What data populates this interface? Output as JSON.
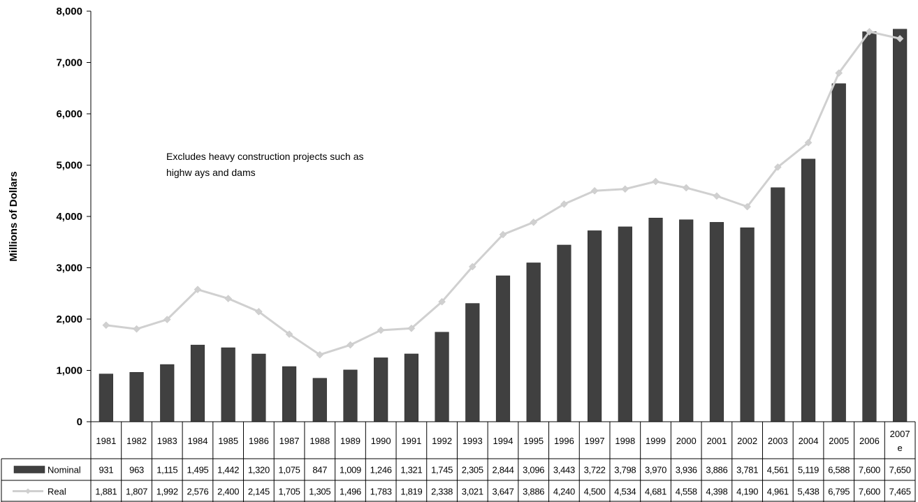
{
  "chart_data": {
    "type": "bar",
    "ylabel": "Millions of Dollars",
    "ylim": [
      0,
      8000
    ],
    "yticks": [
      "0",
      "1,000",
      "2,000",
      "3,000",
      "4,000",
      "5,000",
      "6,000",
      "7,000",
      "8,000"
    ],
    "categories": [
      "1981",
      "1982",
      "1983",
      "1984",
      "1985",
      "1986",
      "1987",
      "1988",
      "1989",
      "1990",
      "1991",
      "1992",
      "1993",
      "1994",
      "1995",
      "1996",
      "1997",
      "1998",
      "1999",
      "2000",
      "2001",
      "2002",
      "2003",
      "2004",
      "2005",
      "2006",
      "2007 e"
    ],
    "annotation": "Excludes heavy construction projects such as highw ays and dams",
    "grid": false,
    "legend": "data table below chart",
    "series": [
      {
        "name": "Nominal",
        "kind": "bar",
        "color": "#404040",
        "values": [
          931,
          963,
          1115,
          1495,
          1442,
          1320,
          1075,
          847,
          1009,
          1246,
          1321,
          1745,
          2305,
          2844,
          3096,
          3443,
          3722,
          3798,
          3970,
          3936,
          3886,
          3781,
          4561,
          5119,
          6588,
          7600,
          7650
        ],
        "labels": [
          "931",
          "963",
          "1,115",
          "1,495",
          "1,442",
          "1,320",
          "1,075",
          "847",
          "1,009",
          "1,246",
          "1,321",
          "1,745",
          "2,305",
          "2,844",
          "3,096",
          "3,443",
          "3,722",
          "3,798",
          "3,970",
          "3,936",
          "3,886",
          "3,781",
          "4,561",
          "5,119",
          "6,588",
          "7,600",
          "7,650"
        ]
      },
      {
        "name": "Real",
        "kind": "line",
        "color": "#d0d0d0",
        "values": [
          1881,
          1807,
          1992,
          2576,
          2400,
          2145,
          1705,
          1305,
          1496,
          1783,
          1819,
          2338,
          3021,
          3647,
          3886,
          4240,
          4500,
          4534,
          4681,
          4558,
          4398,
          4190,
          4961,
          5438,
          6795,
          7600,
          7465
        ],
        "labels": [
          "1,881",
          "1,807",
          "1,992",
          "2,576",
          "2,400",
          "2,145",
          "1,705",
          "1,305",
          "1,496",
          "1,783",
          "1,819",
          "2,338",
          "3,021",
          "3,647",
          "3,886",
          "4,240",
          "4,500",
          "4,534",
          "4,681",
          "4,558",
          "4,398",
          "4,190",
          "4,961",
          "5,438",
          "6,795",
          "7,600",
          "7,465"
        ]
      }
    ]
  }
}
